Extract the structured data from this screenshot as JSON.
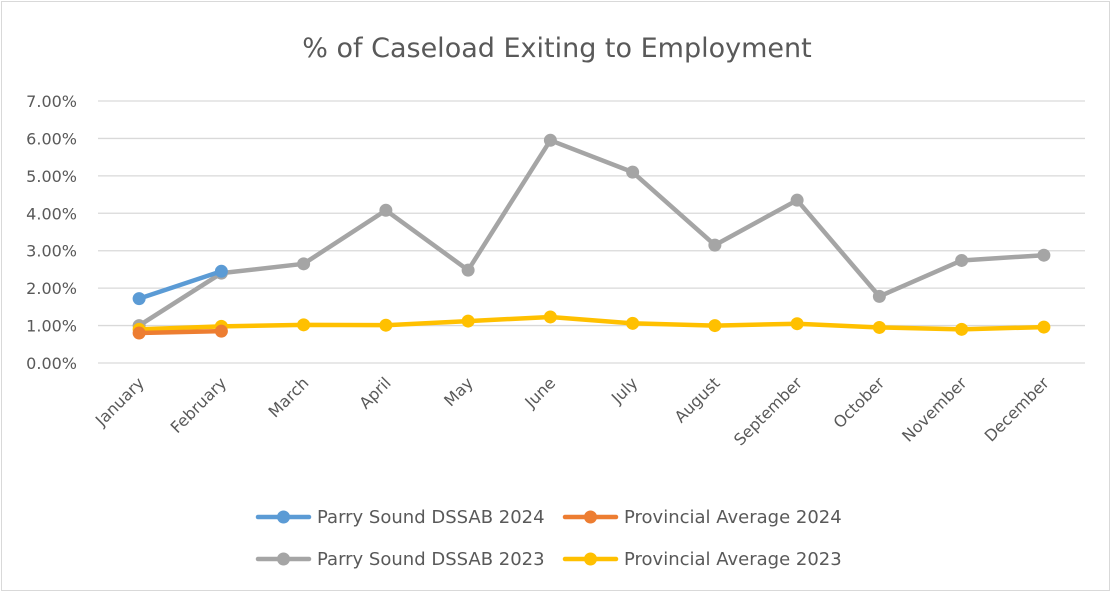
{
  "chart_data": {
    "type": "line",
    "title": "% of Caseload Exiting to Employment",
    "xlabel": "",
    "ylabel": "",
    "categories": [
      "January",
      "February",
      "March",
      "April",
      "May",
      "June",
      "July",
      "August",
      "September",
      "October",
      "November",
      "December"
    ],
    "ylim": [
      0,
      7
    ],
    "yticks": [
      "0.00%",
      "1.00%",
      "2.00%",
      "3.00%",
      "4.00%",
      "5.00%",
      "6.00%",
      "7.00%"
    ],
    "grid": true,
    "legend_position": "bottom",
    "series": [
      {
        "name": "Parry Sound DSSAB 2024",
        "color": "#5b9bd5",
        "values": [
          1.72,
          2.45,
          null,
          null,
          null,
          null,
          null,
          null,
          null,
          null,
          null,
          null
        ]
      },
      {
        "name": "Provincial Average 2024",
        "color": "#ed7d31",
        "values": [
          0.8,
          0.85,
          null,
          null,
          null,
          null,
          null,
          null,
          null,
          null,
          null,
          null
        ]
      },
      {
        "name": "Parry Sound DSSAB 2023",
        "color": "#a5a5a5",
        "values": [
          1.0,
          2.4,
          2.65,
          4.08,
          2.48,
          5.95,
          5.1,
          3.15,
          4.35,
          1.78,
          2.74,
          2.88
        ]
      },
      {
        "name": "Provincial Average 2023",
        "color": "#ffc000",
        "values": [
          0.9,
          0.98,
          1.02,
          1.01,
          1.12,
          1.23,
          1.06,
          1.0,
          1.05,
          0.95,
          0.9,
          0.96
        ]
      }
    ]
  }
}
